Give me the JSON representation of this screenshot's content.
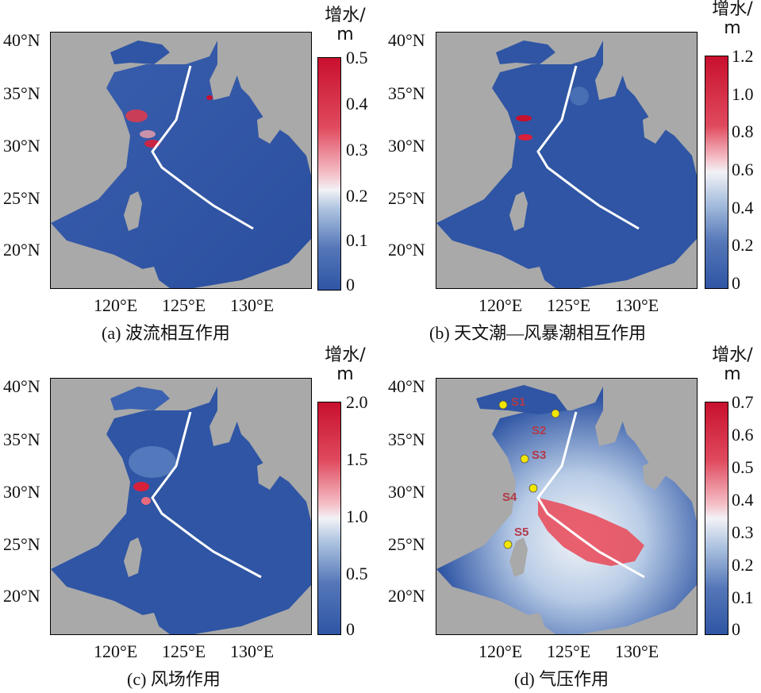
{
  "panels": [
    {
      "id": "a",
      "caption": "(a) 波流相互作用",
      "cb_title_line1": "增水/",
      "cb_title_line2": "m",
      "cb_ticks": [
        "0.5",
        "0.4",
        "0.3",
        "0.2",
        "0.1",
        "0"
      ],
      "cb_max": 0.5
    },
    {
      "id": "b",
      "caption": "(b) 天文潮—风暴潮相互作用",
      "cb_title_line1": "增水/",
      "cb_title_line2": "m",
      "cb_ticks": [
        "1.2",
        "1.0",
        "0.8",
        "0.6",
        "0.4",
        "0.2",
        "0"
      ],
      "cb_max": 1.2
    },
    {
      "id": "c",
      "caption": "(c) 风场作用",
      "cb_title_line1": "增水/",
      "cb_title_line2": "m",
      "cb_ticks": [
        "2.0",
        "1.5",
        "1.0",
        "0.5",
        "0"
      ],
      "cb_max": 2.0
    },
    {
      "id": "d",
      "caption": "(d) 气压作用",
      "cb_title_line1": "增水/",
      "cb_title_line2": "m",
      "cb_ticks": [
        "0.7",
        "0.6",
        "0.5",
        "0.4",
        "0.3",
        "0.2",
        "0.1",
        "0"
      ],
      "cb_max": 0.7
    }
  ],
  "axes": {
    "lat_labels": [
      "40°N",
      "35°N",
      "30°N",
      "25°N",
      "20°N"
    ],
    "lon_labels": [
      "120°E",
      "125°E",
      "130°E"
    ]
  },
  "stations": [
    "S1",
    "S2",
    "S3",
    "S4",
    "S5"
  ],
  "colors": {
    "land": "#a9a9a9",
    "sea_low": "#2f55a4",
    "sea_mid": "#f4f4f8",
    "sea_high": "#c8102e",
    "track": "#ffffff",
    "station": "#f2e600"
  }
}
